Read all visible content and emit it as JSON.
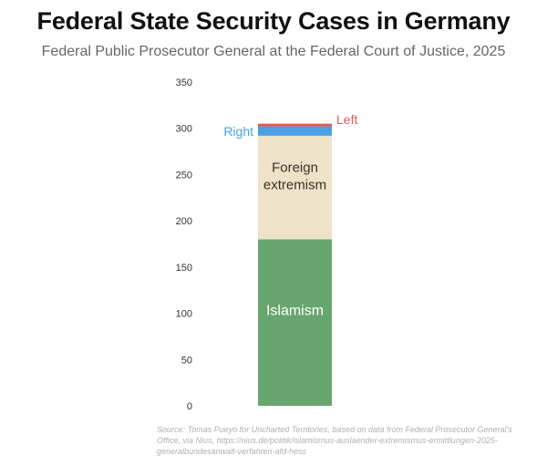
{
  "chart_data": {
    "type": "bar",
    "stacked": true,
    "title": "Federal State Security Cases in Germany",
    "subtitle": "Federal Public Prosecutor General at the Federal Court of Justice, 2025",
    "ylim": [
      0,
      350
    ],
    "yticks": [
      0,
      50,
      100,
      150,
      200,
      250,
      300,
      350
    ],
    "grid": false,
    "categories": [
      ""
    ],
    "series": [
      {
        "name": "Islamism",
        "values": [
          180
        ],
        "color": "#68a66f",
        "label_lines": [
          "Islamism"
        ]
      },
      {
        "name": "Foreign extremism",
        "values": [
          112
        ],
        "color": "#eee2c8",
        "label_lines": [
          "Foreign",
          "extremism"
        ]
      },
      {
        "name": "Right",
        "values": [
          10
        ],
        "color": "#4a9fe6",
        "label_lines": [
          "Right"
        ]
      },
      {
        "name": "Left",
        "values": [
          3
        ],
        "color": "#e05a5a",
        "label_lines": [
          "Left"
        ]
      }
    ]
  },
  "source": "Source: Tomas Pueyo for Uncharted Territories, based on data from Federal Prosecutor General's Office, via Nius, https://nius.de/politik/islamismus-auslaender-extremismus-ermittlungen-2025-generalbundesanwalt-verfahren-afd-hess"
}
